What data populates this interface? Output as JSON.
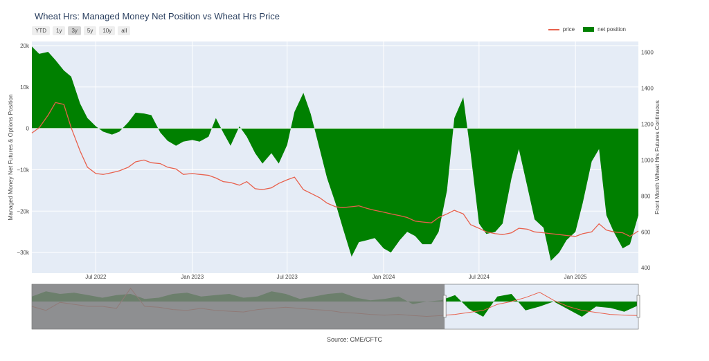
{
  "title": "Wheat Hrs: Managed Money Net Position vs Wheat Hrs Price",
  "range_buttons": [
    {
      "label": "YTD",
      "active": false
    },
    {
      "label": "1y",
      "active": false
    },
    {
      "label": "3y",
      "active": true
    },
    {
      "label": "5y",
      "active": false
    },
    {
      "label": "10y",
      "active": false
    },
    {
      "label": "all",
      "active": false
    }
  ],
  "legend": {
    "price": "price",
    "net_position": "net position",
    "placement": "top-right"
  },
  "source": "Source: CME/CFTC",
  "colors": {
    "price": "#e8604c",
    "net_position": "#008000",
    "plot_bg": "#e5ecf6",
    "selector_shade": "#7f7f7f"
  },
  "chart_data": {
    "type": "area",
    "xlabel": "",
    "ylabel_left": "Managed Money Net Futures & Options Position",
    "ylabel_right": "Front Month Wheat Hrs Futures Continuous",
    "xlim": [
      "2022-03-01",
      "2025-05-01"
    ],
    "ylim_left": [
      -35000,
      21000
    ],
    "ylim_right": [
      370,
      1660
    ],
    "y_ticks_left": [
      {
        "v": 20000,
        "label": "20k"
      },
      {
        "v": 10000,
        "label": "10k"
      },
      {
        "v": 0,
        "label": "0"
      },
      {
        "v": -10000,
        "label": "−10k"
      },
      {
        "v": -20000,
        "label": "−20k"
      },
      {
        "v": -30000,
        "label": "−30k"
      }
    ],
    "y_ticks_right": [
      {
        "v": 1600,
        "label": "1600"
      },
      {
        "v": 1400,
        "label": "1400"
      },
      {
        "v": 1200,
        "label": "1200"
      },
      {
        "v": 1000,
        "label": "1000"
      },
      {
        "v": 800,
        "label": "800"
      },
      {
        "v": 600,
        "label": "600"
      },
      {
        "v": 400,
        "label": "400"
      }
    ],
    "x_ticks": [
      {
        "v": "2022-07-01",
        "label": "Jul 2022"
      },
      {
        "v": "2023-01-01",
        "label": "Jan 2023"
      },
      {
        "v": "2023-07-01",
        "label": "Jul 2023"
      },
      {
        "v": "2024-01-01",
        "label": "Jan 2024"
      },
      {
        "v": "2024-07-01",
        "label": "Jul 2024"
      },
      {
        "v": "2025-01-01",
        "label": "Jan 2025"
      }
    ],
    "grid": true,
    "series": [
      {
        "name": "net position",
        "type": "area",
        "points": [
          [
            "2022-03-01",
            19800
          ],
          [
            "2022-03-15",
            18000
          ],
          [
            "2022-04-01",
            18500
          ],
          [
            "2022-04-15",
            16500
          ],
          [
            "2022-05-01",
            14000
          ],
          [
            "2022-05-15",
            12500
          ],
          [
            "2022-06-01",
            6000
          ],
          [
            "2022-06-15",
            2500
          ],
          [
            "2022-07-01",
            500
          ],
          [
            "2022-07-15",
            -800
          ],
          [
            "2022-08-01",
            -1500
          ],
          [
            "2022-08-15",
            -800
          ],
          [
            "2022-09-01",
            1500
          ],
          [
            "2022-09-15",
            3800
          ],
          [
            "2022-10-01",
            3600
          ],
          [
            "2022-10-15",
            3200
          ],
          [
            "2022-11-01",
            -1000
          ],
          [
            "2022-11-15",
            -3000
          ],
          [
            "2022-12-01",
            -4200
          ],
          [
            "2022-12-15",
            -3200
          ],
          [
            "2023-01-01",
            -2800
          ],
          [
            "2023-01-15",
            -3200
          ],
          [
            "2023-02-01",
            -2000
          ],
          [
            "2023-02-15",
            2500
          ],
          [
            "2023-03-01",
            -1000
          ],
          [
            "2023-03-15",
            -4200
          ],
          [
            "2023-04-01",
            500
          ],
          [
            "2023-04-15",
            -2000
          ],
          [
            "2023-05-01",
            -6000
          ],
          [
            "2023-05-15",
            -8500
          ],
          [
            "2023-06-01",
            -6000
          ],
          [
            "2023-06-15",
            -8500
          ],
          [
            "2023-07-01",
            -4000
          ],
          [
            "2023-07-15",
            4000
          ],
          [
            "2023-08-01",
            8600
          ],
          [
            "2023-08-15",
            3500
          ],
          [
            "2023-09-01",
            -5000
          ],
          [
            "2023-09-15",
            -12000
          ],
          [
            "2023-10-01",
            -18000
          ],
          [
            "2023-10-15",
            -24000
          ],
          [
            "2023-11-01",
            -31000
          ],
          [
            "2023-11-15",
            -27500
          ],
          [
            "2023-12-01",
            -27000
          ],
          [
            "2023-12-15",
            -26500
          ],
          [
            "2024-01-01",
            -29000
          ],
          [
            "2024-01-15",
            -30000
          ],
          [
            "2024-02-01",
            -27000
          ],
          [
            "2024-02-15",
            -25000
          ],
          [
            "2024-03-01",
            -26000
          ],
          [
            "2024-03-15",
            -28000
          ],
          [
            "2024-04-01",
            -28000
          ],
          [
            "2024-04-15",
            -25000
          ],
          [
            "2024-05-01",
            -15000
          ],
          [
            "2024-05-15",
            2500
          ],
          [
            "2024-06-01",
            7500
          ],
          [
            "2024-06-15",
            -6000
          ],
          [
            "2024-07-01",
            -23000
          ],
          [
            "2024-07-15",
            -25500
          ],
          [
            "2024-08-01",
            -25000
          ],
          [
            "2024-08-15",
            -23000
          ],
          [
            "2024-09-01",
            -12000
          ],
          [
            "2024-09-15",
            -5000
          ],
          [
            "2024-10-01",
            -14000
          ],
          [
            "2024-10-15",
            -22000
          ],
          [
            "2024-11-01",
            -24000
          ],
          [
            "2024-11-15",
            -32000
          ],
          [
            "2024-12-01",
            -30000
          ],
          [
            "2024-12-15",
            -27000
          ],
          [
            "2025-01-01",
            -25000
          ],
          [
            "2025-01-15",
            -18000
          ],
          [
            "2025-02-01",
            -8000
          ],
          [
            "2025-02-15",
            -5000
          ],
          [
            "2025-03-01",
            -21000
          ],
          [
            "2025-03-15",
            -25000
          ],
          [
            "2025-04-01",
            -29000
          ],
          [
            "2025-04-15",
            -28000
          ],
          [
            "2025-05-01",
            -21000
          ]
        ]
      },
      {
        "name": "price",
        "type": "line",
        "axis": "right",
        "points": [
          [
            "2022-03-01",
            1150
          ],
          [
            "2022-03-15",
            1180
          ],
          [
            "2022-04-01",
            1250
          ],
          [
            "2022-04-15",
            1320
          ],
          [
            "2022-05-01",
            1310
          ],
          [
            "2022-05-15",
            1180
          ],
          [
            "2022-06-01",
            1050
          ],
          [
            "2022-06-15",
            960
          ],
          [
            "2022-07-01",
            925
          ],
          [
            "2022-07-15",
            920
          ],
          [
            "2022-08-01",
            930
          ],
          [
            "2022-08-15",
            940
          ],
          [
            "2022-09-01",
            960
          ],
          [
            "2022-09-15",
            990
          ],
          [
            "2022-10-01",
            1000
          ],
          [
            "2022-10-15",
            985
          ],
          [
            "2022-11-01",
            980
          ],
          [
            "2022-11-15",
            960
          ],
          [
            "2022-12-01",
            950
          ],
          [
            "2022-12-15",
            920
          ],
          [
            "2023-01-01",
            925
          ],
          [
            "2023-01-15",
            920
          ],
          [
            "2023-02-01",
            915
          ],
          [
            "2023-02-15",
            900
          ],
          [
            "2023-03-01",
            880
          ],
          [
            "2023-03-15",
            875
          ],
          [
            "2023-04-01",
            860
          ],
          [
            "2023-04-15",
            880
          ],
          [
            "2023-05-01",
            840
          ],
          [
            "2023-05-15",
            835
          ],
          [
            "2023-06-01",
            845
          ],
          [
            "2023-06-15",
            870
          ],
          [
            "2023-07-01",
            890
          ],
          [
            "2023-07-15",
            905
          ],
          [
            "2023-08-01",
            835
          ],
          [
            "2023-08-15",
            815
          ],
          [
            "2023-09-01",
            790
          ],
          [
            "2023-09-15",
            760
          ],
          [
            "2023-10-01",
            740
          ],
          [
            "2023-10-15",
            735
          ],
          [
            "2023-11-01",
            740
          ],
          [
            "2023-11-15",
            745
          ],
          [
            "2023-12-01",
            730
          ],
          [
            "2023-12-15",
            720
          ],
          [
            "2024-01-01",
            710
          ],
          [
            "2024-01-15",
            700
          ],
          [
            "2024-02-01",
            690
          ],
          [
            "2024-02-15",
            680
          ],
          [
            "2024-03-01",
            660
          ],
          [
            "2024-03-15",
            655
          ],
          [
            "2024-04-01",
            650
          ],
          [
            "2024-04-15",
            680
          ],
          [
            "2024-05-01",
            700
          ],
          [
            "2024-05-15",
            720
          ],
          [
            "2024-06-01",
            700
          ],
          [
            "2024-06-15",
            640
          ],
          [
            "2024-07-01",
            620
          ],
          [
            "2024-07-15",
            600
          ],
          [
            "2024-08-01",
            590
          ],
          [
            "2024-08-15",
            585
          ],
          [
            "2024-09-01",
            595
          ],
          [
            "2024-09-15",
            620
          ],
          [
            "2024-10-01",
            615
          ],
          [
            "2024-10-15",
            600
          ],
          [
            "2024-11-01",
            595
          ],
          [
            "2024-11-15",
            590
          ],
          [
            "2024-12-01",
            585
          ],
          [
            "2024-12-15",
            580
          ],
          [
            "2025-01-01",
            575
          ],
          [
            "2025-01-15",
            590
          ],
          [
            "2025-02-01",
            600
          ],
          [
            "2025-02-15",
            645
          ],
          [
            "2025-03-01",
            610
          ],
          [
            "2025-03-15",
            600
          ],
          [
            "2025-04-01",
            595
          ],
          [
            "2025-04-15",
            575
          ],
          [
            "2025-05-01",
            605
          ]
        ]
      }
    ],
    "navigator": {
      "xlim": [
        "2015-06-01",
        "2025-05-01"
      ],
      "selected": [
        "2022-03-01",
        "2025-05-01"
      ],
      "net_position": [
        4000,
        8000,
        6000,
        7000,
        5000,
        3000,
        5000,
        6000,
        2000,
        3000,
        6000,
        7000,
        4000,
        5000,
        6000,
        3000,
        4000,
        8000,
        6000,
        2000,
        4000,
        6000,
        7000,
        3000,
        1000,
        2000,
        4000,
        -2000,
        0,
        1000,
        5000,
        -6000,
        -12000,
        4000,
        6000,
        -7000,
        -4000,
        0,
        -6000,
        -12000,
        -4000,
        -5000,
        -8000,
        -3000
      ],
      "price": [
        0.5,
        0.4,
        0.6,
        0.55,
        0.5,
        0.5,
        0.45,
        0.95,
        0.5,
        0.48,
        0.42,
        0.4,
        0.45,
        0.4,
        0.38,
        0.36,
        0.42,
        0.45,
        0.48,
        0.45,
        0.42,
        0.4,
        0.35,
        0.33,
        0.3,
        0.28,
        0.3,
        0.27,
        0.25,
        0.27,
        0.3,
        0.35,
        0.4,
        0.55,
        0.62,
        0.72,
        0.85,
        0.65,
        0.5,
        0.4,
        0.35,
        0.3,
        0.28,
        0.27
      ]
    }
  }
}
